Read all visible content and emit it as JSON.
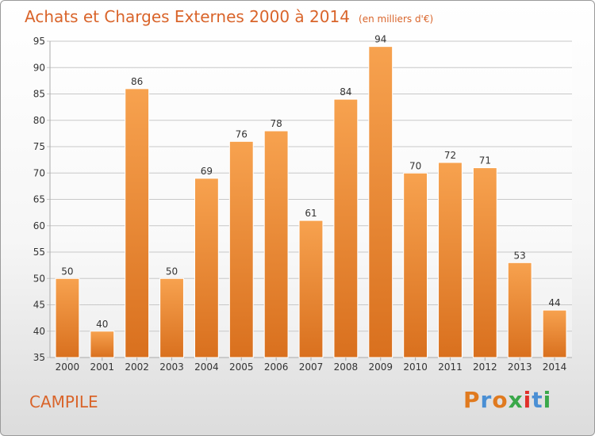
{
  "title": "Achats et Charges Externes 2000 à 2014",
  "unit": "(en milliers d'€)",
  "commune": "CAMPILE",
  "logo": {
    "text": "Proxiti",
    "colors": [
      "#e07a1f",
      "#4a8fd4",
      "#e07a1f",
      "#3aa84a",
      "#e0302a",
      "#4a8fd4",
      "#3aa84a"
    ]
  },
  "colors": {
    "title": "#d9642a",
    "bar_top": "#f7a24f",
    "bar_bottom": "#d9701e",
    "grid": "#c8c8c8",
    "axis_text": "#333333"
  },
  "chart_data": {
    "type": "bar",
    "categories": [
      "2000",
      "2001",
      "2002",
      "2003",
      "2004",
      "2005",
      "2006",
      "2007",
      "2008",
      "2009",
      "2010",
      "2011",
      "2012",
      "2013",
      "2014"
    ],
    "values": [
      50,
      40,
      86,
      50,
      69,
      76,
      78,
      61,
      84,
      94,
      70,
      72,
      71,
      53,
      44
    ],
    "yticks": [
      35,
      40,
      45,
      50,
      55,
      60,
      65,
      70,
      75,
      80,
      85,
      90,
      95
    ],
    "ylim": [
      35,
      95
    ],
    "grid": true,
    "data_labels": true
  }
}
